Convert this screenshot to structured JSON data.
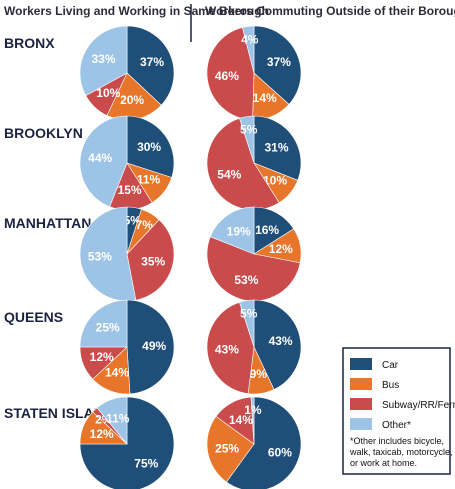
{
  "headers": {
    "left": "Workers Living and Working in Same Borough",
    "right": "Workers Commuting Outside of their Borough of Residence"
  },
  "colors": {
    "Car": "#1f4e79",
    "Bus": "#e8762a",
    "Subway/RR/Ferry": "#c94b4b",
    "Other*": "#9dc3e6"
  },
  "legend": {
    "items": [
      "Car",
      "Bus",
      "Subway/RR/Ferry",
      "Other*"
    ],
    "note": [
      "*Other includes bicycle,",
      "walk, taxicab, motorcycle,",
      "or work at home."
    ]
  },
  "chart_data": {
    "type": "pie",
    "categories": [
      "Car",
      "Bus",
      "Subway/RR/Ferry",
      "Other*"
    ],
    "rows": [
      {
        "borough": "BRONX",
        "same_borough": [
          {
            "category": "Car",
            "value": 37,
            "label": "37%"
          },
          {
            "category": "Bus",
            "value": 20,
            "label": "20%"
          },
          {
            "category": "Subway/RR/Ferry",
            "value": 10,
            "label": "10%"
          },
          {
            "category": "Other*",
            "value": 33,
            "label": "33%"
          }
        ],
        "outside_borough": [
          {
            "category": "Car",
            "value": 37,
            "label": "37%"
          },
          {
            "category": "Bus",
            "value": 14,
            "label": "14%"
          },
          {
            "category": "Subway/RR/Ferry",
            "value": 46,
            "label": "46%"
          },
          {
            "category": "Other*",
            "value": 4,
            "label": "4%"
          }
        ]
      },
      {
        "borough": "BROOKLYN",
        "same_borough": [
          {
            "category": "Car",
            "value": 30,
            "label": "30%"
          },
          {
            "category": "Bus",
            "value": 11,
            "label": "11%"
          },
          {
            "category": "Subway/RR/Ferry",
            "value": 15,
            "label": "15%"
          },
          {
            "category": "Other*",
            "value": 44,
            "label": "44%"
          }
        ],
        "outside_borough": [
          {
            "category": "Car",
            "value": 31,
            "label": "31%"
          },
          {
            "category": "Bus",
            "value": 10,
            "label": "10%"
          },
          {
            "category": "Subway/RR/Ferry",
            "value": 54,
            "label": "54%"
          },
          {
            "category": "Other*",
            "value": 5,
            "label": "5%"
          }
        ]
      },
      {
        "borough": "MANHATTAN",
        "same_borough": [
          {
            "category": "Car",
            "value": 5,
            "label": "5%"
          },
          {
            "category": "Bus",
            "value": 7,
            "label": "7%"
          },
          {
            "category": "Subway/RR/Ferry",
            "value": 35,
            "label": "35%"
          },
          {
            "category": "Other*",
            "value": 53,
            "label": "53%"
          }
        ],
        "outside_borough": [
          {
            "category": "Car",
            "value": 16,
            "label": "16%"
          },
          {
            "category": "Bus",
            "value": 12,
            "label": "12%"
          },
          {
            "category": "Subway/RR/Ferry",
            "value": 53,
            "label": "53%"
          },
          {
            "category": "Other*",
            "value": 19,
            "label": "19%"
          }
        ]
      },
      {
        "borough": "QUEENS",
        "same_borough": [
          {
            "category": "Car",
            "value": 49,
            "label": "49%"
          },
          {
            "category": "Bus",
            "value": 14,
            "label": "14%"
          },
          {
            "category": "Subway/RR/Ferry",
            "value": 12,
            "label": "12%"
          },
          {
            "category": "Other*",
            "value": 25,
            "label": "25%"
          }
        ],
        "outside_borough": [
          {
            "category": "Car",
            "value": 43,
            "label": "43%"
          },
          {
            "category": "Bus",
            "value": 9,
            "label": "9%"
          },
          {
            "category": "Subway/RR/Ferry",
            "value": 43,
            "label": "43%"
          },
          {
            "category": "Other*",
            "value": 5,
            "label": "5%"
          }
        ]
      },
      {
        "borough": "STATEN ISLAND",
        "same_borough": [
          {
            "category": "Car",
            "value": 75,
            "label": "75%"
          },
          {
            "category": "Bus",
            "value": 12,
            "label": "12%"
          },
          {
            "category": "Subway/RR/Ferry",
            "value": 2,
            "label": "2%"
          },
          {
            "category": "Other*",
            "value": 11,
            "label": "11%"
          }
        ],
        "outside_borough": [
          {
            "category": "Car",
            "value": 60,
            "label": "60%"
          },
          {
            "category": "Bus",
            "value": 25,
            "label": "25%"
          },
          {
            "category": "Subway/RR/Ferry",
            "value": 14,
            "label": "14%"
          },
          {
            "category": "Other*",
            "value": 1,
            "label": "1%"
          }
        ]
      }
    ]
  }
}
